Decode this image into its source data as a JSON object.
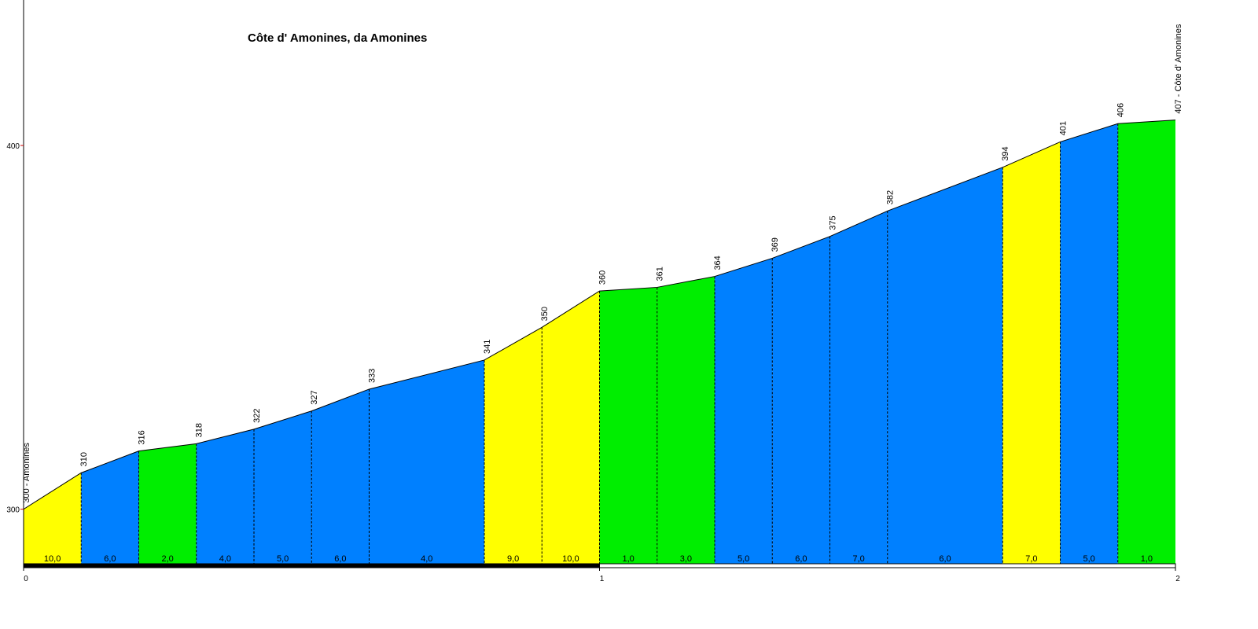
{
  "chart_data": {
    "type": "profile",
    "title": "Côte d' Amonines, da Amonines",
    "x": [
      0,
      0.1,
      0.2,
      0.3,
      0.4,
      0.5,
      0.6,
      0.8,
      0.9,
      1.0,
      1.1,
      1.2,
      1.3,
      1.4,
      1.5,
      1.7,
      1.8,
      1.9,
      2.0
    ],
    "values": [
      300,
      310,
      316,
      318,
      322,
      327,
      333,
      341,
      350,
      360,
      361,
      364,
      369,
      375,
      382,
      394,
      401,
      406,
      407
    ],
    "value_labels": [
      "300 - Amonines",
      "310",
      "316",
      "318",
      "322",
      "327",
      "333",
      "341",
      "350",
      "360",
      "361",
      "364",
      "369",
      "375",
      "382",
      "394",
      "401",
      "406",
      "407 - Côte d' Amonines"
    ],
    "segment_values": [
      10,
      6,
      2,
      4,
      5,
      6,
      4,
      9,
      10,
      1,
      3,
      5,
      6,
      7,
      6,
      7,
      5,
      1
    ],
    "segment_labels": [
      "10,0",
      "6,0",
      "2,0",
      "4,0",
      "5,0",
      "6,0",
      "4,0",
      "9,0",
      "10,0",
      "1,0",
      "3,0",
      "5,0",
      "6,0",
      "7,0",
      "6,0",
      "7,0",
      "5,0",
      "1,0"
    ],
    "segment_colors": [
      "#ffff00",
      "#0080ff",
      "#00ee00",
      "#0080ff",
      "#0080ff",
      "#0080ff",
      "#0080ff",
      "#ffff00",
      "#ffff00",
      "#00ee00",
      "#00ee00",
      "#0080ff",
      "#0080ff",
      "#0080ff",
      "#0080ff",
      "#ffff00",
      "#0080ff",
      "#00ee00"
    ],
    "xlim": [
      0,
      2
    ],
    "xticks": [
      0,
      1,
      2
    ],
    "ylim": [
      285,
      440
    ],
    "yticks": [
      300,
      400
    ]
  }
}
